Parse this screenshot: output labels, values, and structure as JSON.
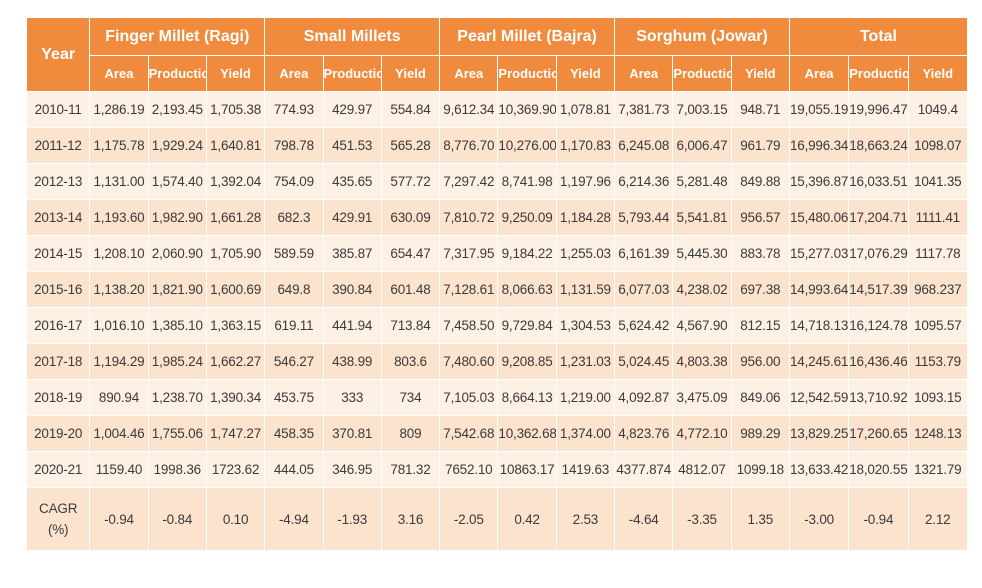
{
  "header": {
    "year": "Year",
    "groups": [
      "Finger Millet (Ragi)",
      "Small Millets",
      "Pearl Millet (Bajra)",
      "Sorghum (Jowar)",
      "Total"
    ],
    "sub": [
      "Area",
      "Production",
      "Yield"
    ]
  },
  "rows": [
    {
      "year": "2010-11",
      "cells": [
        "1,286.19",
        "2,193.45",
        "1,705.38",
        "774.93",
        "429.97",
        "554.84",
        "9,612.34",
        "10,369.90",
        "1,078.81",
        "7,381.73",
        "7,003.15",
        "948.71",
        "19,055.19",
        "19,996.47",
        "1049.4"
      ]
    },
    {
      "year": "2011-12",
      "cells": [
        "1,175.78",
        "1,929.24",
        "1,640.81",
        "798.78",
        "451.53",
        "565.28",
        "8,776.70",
        "10,276.00",
        "1,170.83",
        "6,245.08",
        "6,006.47",
        "961.79",
        "16,996.34",
        "18,663.24",
        "1098.07"
      ]
    },
    {
      "year": "2012-13",
      "cells": [
        "1,131.00",
        "1,574.40",
        "1,392.04",
        "754.09",
        "435.65",
        "577.72",
        "7,297.42",
        "8,741.98",
        "1,197.96",
        "6,214.36",
        "5,281.48",
        "849.88",
        "15,396.87",
        "16,033.51",
        "1041.35"
      ]
    },
    {
      "year": "2013-14",
      "cells": [
        "1,193.60",
        "1,982.90",
        "1,661.28",
        "682.3",
        "429.91",
        "630.09",
        "7,810.72",
        "9,250.09",
        "1,184.28",
        "5,793.44",
        "5,541.81",
        "956.57",
        "15,480.06",
        "17,204.71",
        "1111.41"
      ]
    },
    {
      "year": "2014-15",
      "cells": [
        "1,208.10",
        "2,060.90",
        "1,705.90",
        "589.59",
        "385.87",
        "654.47",
        "7,317.95",
        "9,184.22",
        "1,255.03",
        "6,161.39",
        "5,445.30",
        "883.78",
        "15,277.03",
        "17,076.29",
        "1117.78"
      ]
    },
    {
      "year": "2015-16",
      "cells": [
        "1,138.20",
        "1,821.90",
        "1,600.69",
        "649.8",
        "390.84",
        "601.48",
        "7,128.61",
        "8,066.63",
        "1,131.59",
        "6,077.03",
        "4,238.02",
        "697.38",
        "14,993.64",
        "14,517.39",
        "968.237"
      ]
    },
    {
      "year": "2016-17",
      "cells": [
        "1,016.10",
        "1,385.10",
        "1,363.15",
        "619.11",
        "441.94",
        "713.84",
        "7,458.50",
        "9,729.84",
        "1,304.53",
        "5,624.42",
        "4,567.90",
        "812.15",
        "14,718.13",
        "16,124.78",
        "1095.57"
      ]
    },
    {
      "year": "2017-18",
      "cells": [
        "1,194.29",
        "1,985.24",
        "1,662.27",
        "546.27",
        "438.99",
        "803.6",
        "7,480.60",
        "9,208.85",
        "1,231.03",
        "5,024.45",
        "4,803.38",
        "956.00",
        "14,245.61",
        "16,436.46",
        "1153.79"
      ]
    },
    {
      "year": "2018-19",
      "cells": [
        "890.94",
        "1,238.70",
        "1,390.34",
        "453.75",
        "333",
        "734",
        "7,105.03",
        "8,664.13",
        "1,219.00",
        "4,092.87",
        "3,475.09",
        "849.06",
        "12,542.59",
        "13,710.92",
        "1093.15"
      ]
    },
    {
      "year": "2019-20",
      "cells": [
        "1,004.46",
        "1,755.06",
        "1,747.27",
        "458.35",
        "370.81",
        "809",
        "7,542.68",
        "10,362.68",
        "1,374.00",
        "4,823.76",
        "4,772.10",
        "989.29",
        "13,829.25",
        "17,260.65",
        "1248.13"
      ]
    },
    {
      "year": "2020-21",
      "cells": [
        "1159.40",
        "1998.36",
        "1723.62",
        "444.05",
        "346.95",
        "781.32",
        "7652.10",
        "10863.17",
        "1419.63",
        "4377.874",
        "4812.07",
        "1099.18",
        "13,633.42",
        "18,020.55",
        "1321.79"
      ]
    }
  ],
  "cagr": {
    "label_line1": "CAGR",
    "label_line2": "(%)",
    "cells": [
      "-0.94",
      "-0.84",
      "0.10",
      "-4.94",
      "-1.93",
      "3.16",
      "-2.05",
      "0.42",
      "2.53",
      "-4.64",
      "-3.35",
      "1.35",
      "-3.00",
      "-0.94",
      "2.12"
    ]
  },
  "colors": {
    "header_bg": "#f08a3c",
    "row_light": "#fdf1e6",
    "row_dark": "#fbe3cd"
  }
}
